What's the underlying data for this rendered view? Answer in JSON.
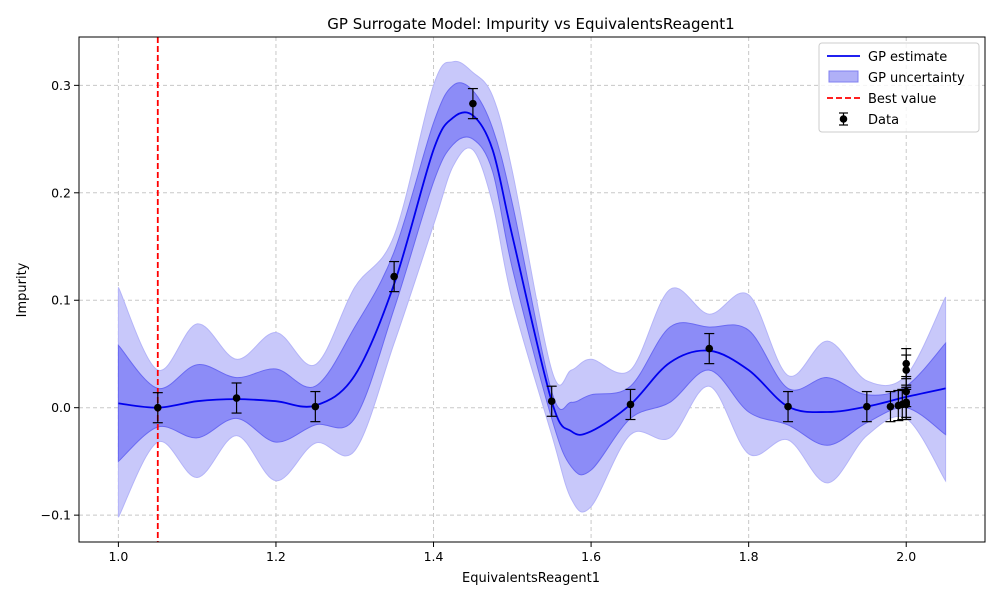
{
  "chart_data": {
    "type": "line",
    "title": "GP Surrogate Model: Impurity vs EquivalentsReagent1",
    "xlabel": "EquivalentsReagent1",
    "ylabel": "Impurity",
    "xlim": [
      0.95,
      2.1
    ],
    "ylim": [
      -0.125,
      0.345
    ],
    "x_ticks": [
      1.0,
      1.2,
      1.4,
      1.6,
      1.8,
      2.0
    ],
    "x_tick_labels": [
      "1.0",
      "1.2",
      "1.4",
      "1.6",
      "1.8",
      "2.0"
    ],
    "y_ticks": [
      -0.1,
      0.0,
      0.1,
      0.2,
      0.3
    ],
    "y_tick_labels": [
      "−0.1",
      "0.0",
      "0.1",
      "0.2",
      "0.3"
    ],
    "grid": true,
    "legend_position": "top-right",
    "legend": [
      "GP estimate",
      "GP uncertainty",
      "Best value",
      "Data"
    ],
    "best_value_x": 1.05,
    "colors": {
      "gp_line": "#0000ee",
      "inner_band": "#7878f5",
      "outer_band": "#c8c8fa",
      "best_line": "#ff0000",
      "data": "#000000",
      "grid": "#c8c8c8"
    },
    "gp_estimate": {
      "x": [
        1.0,
        1.05,
        1.1,
        1.15,
        1.2,
        1.25,
        1.3,
        1.35,
        1.4,
        1.425,
        1.45,
        1.475,
        1.5,
        1.55,
        1.575,
        1.6,
        1.65,
        1.7,
        1.75,
        1.8,
        1.85,
        1.9,
        1.95,
        2.0,
        2.05
      ],
      "y": [
        0.004,
        0.0,
        0.006,
        0.008,
        0.006,
        0.002,
        0.03,
        0.115,
        0.24,
        0.27,
        0.272,
        0.24,
        0.16,
        0.006,
        -0.022,
        -0.022,
        0.003,
        0.042,
        0.053,
        0.035,
        0.001,
        -0.004,
        0.001,
        0.01,
        0.018
      ]
    },
    "inner_band": {
      "upper": [
        0.058,
        0.018,
        0.04,
        0.028,
        0.036,
        0.02,
        0.075,
        0.145,
        0.265,
        0.3,
        0.295,
        0.26,
        0.19,
        0.015,
        0.005,
        0.012,
        0.02,
        0.075,
        0.075,
        0.072,
        0.018,
        0.028,
        0.012,
        0.02,
        0.06
      ],
      "lower": [
        -0.05,
        -0.018,
        -0.028,
        -0.01,
        -0.032,
        -0.016,
        -0.01,
        0.092,
        0.21,
        0.245,
        0.25,
        0.22,
        0.13,
        -0.01,
        -0.055,
        -0.058,
        -0.01,
        0.005,
        0.035,
        -0.004,
        -0.016,
        -0.035,
        -0.014,
        0.0,
        -0.025
      ]
    },
    "outer_band": {
      "upper": [
        0.112,
        0.035,
        0.078,
        0.045,
        0.07,
        0.04,
        0.112,
        0.16,
        0.3,
        0.322,
        0.312,
        0.29,
        0.22,
        0.035,
        0.035,
        0.045,
        0.035,
        0.11,
        0.087,
        0.105,
        0.03,
        0.062,
        0.025,
        0.03,
        0.103
      ]
    },
    "outer_band_lower": [
      -0.102,
      -0.032,
      -0.065,
      -0.026,
      -0.068,
      -0.033,
      -0.04,
      0.06,
      0.17,
      0.225,
      0.24,
      0.19,
      0.1,
      -0.025,
      -0.085,
      -0.092,
      -0.025,
      -0.028,
      0.02,
      -0.043,
      -0.03,
      -0.07,
      -0.026,
      -0.01,
      -0.068
    ],
    "data_points": {
      "x": [
        1.05,
        1.15,
        1.25,
        1.35,
        1.45,
        1.55,
        1.65,
        1.75,
        1.85,
        1.95,
        1.98,
        1.99,
        1.995,
        2.0,
        2.0,
        2.0,
        2.0,
        2.0
      ],
      "y": [
        0.0,
        0.009,
        0.001,
        0.122,
        0.283,
        0.006,
        0.003,
        0.055,
        0.001,
        0.001,
        0.001,
        0.002,
        0.003,
        0.041,
        0.035,
        0.015,
        0.005,
        0.003
      ],
      "err": [
        0.014,
        0.014,
        0.014,
        0.014,
        0.014,
        0.014,
        0.014,
        0.014,
        0.014,
        0.014,
        0.014,
        0.014,
        0.014,
        0.014,
        0.014,
        0.014,
        0.014,
        0.014
      ]
    }
  }
}
